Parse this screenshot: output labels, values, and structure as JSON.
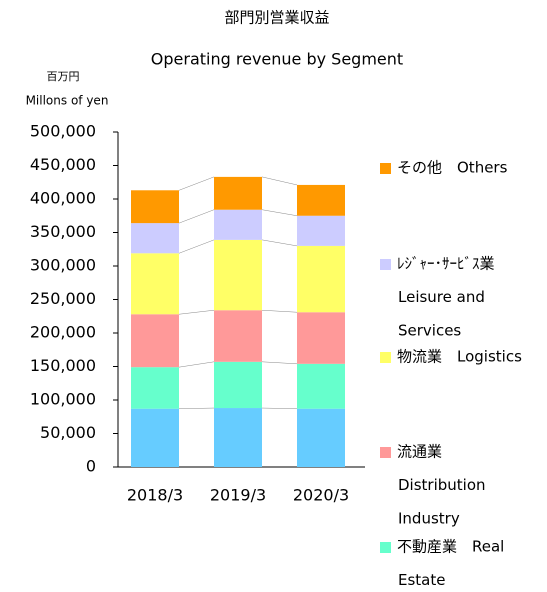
{
  "chart_data": {
    "type": "stacked_bar",
    "title": "部門別営業収益",
    "subtitle": "Operating revenue by Segment",
    "unit_labels": [
      "百万円",
      "Millons of yen"
    ],
    "categories": [
      "2018/3",
      "2019/3",
      "2020/3"
    ],
    "series": [
      {
        "name": null,
        "color": "#66ccff",
        "values": [
          87000,
          88000,
          87000
        ]
      },
      {
        "name": [
          "不動産業　Real",
          "Estate"
        ],
        "color": "#66ffcc",
        "values": [
          62000,
          69000,
          67000
        ]
      },
      {
        "name": [
          "流通業",
          "Distribution",
          "Industry"
        ],
        "color": "#ff9999",
        "values": [
          79000,
          77000,
          77000
        ]
      },
      {
        "name": [
          "物流業　Logistics"
        ],
        "color": "#ffff66",
        "values": [
          91000,
          105000,
          99000
        ]
      },
      {
        "name": [
          "ﾚｼﾞｬｰ･ｻｰﾋﾞｽ業",
          "Leisure and",
          "Services"
        ],
        "color": "#ccccff",
        "values": [
          45000,
          45000,
          45000
        ]
      },
      {
        "name": [
          "その他　Others"
        ],
        "color": "#ff9900",
        "values": [
          49000,
          49000,
          46000
        ]
      }
    ],
    "ylim": [
      0,
      500000
    ],
    "yticks": [
      0,
      {
        "value": 50000,
        "label": "50,000"
      },
      {
        "value": 100000,
        "label": "100,000"
      },
      {
        "value": 150000,
        "label": "150,000"
      },
      {
        "value": 200000,
        "label": "200,000"
      },
      {
        "value": 250000,
        "label": "250,000"
      },
      {
        "value": 300000,
        "label": "300,000"
      },
      {
        "value": 350000,
        "label": "350,000"
      },
      {
        "value": 400000,
        "label": "400,000"
      },
      {
        "value": 450000,
        "label": "450,000"
      },
      {
        "value": 500000,
        "label": "500,000"
      }
    ],
    "legend": "right"
  }
}
